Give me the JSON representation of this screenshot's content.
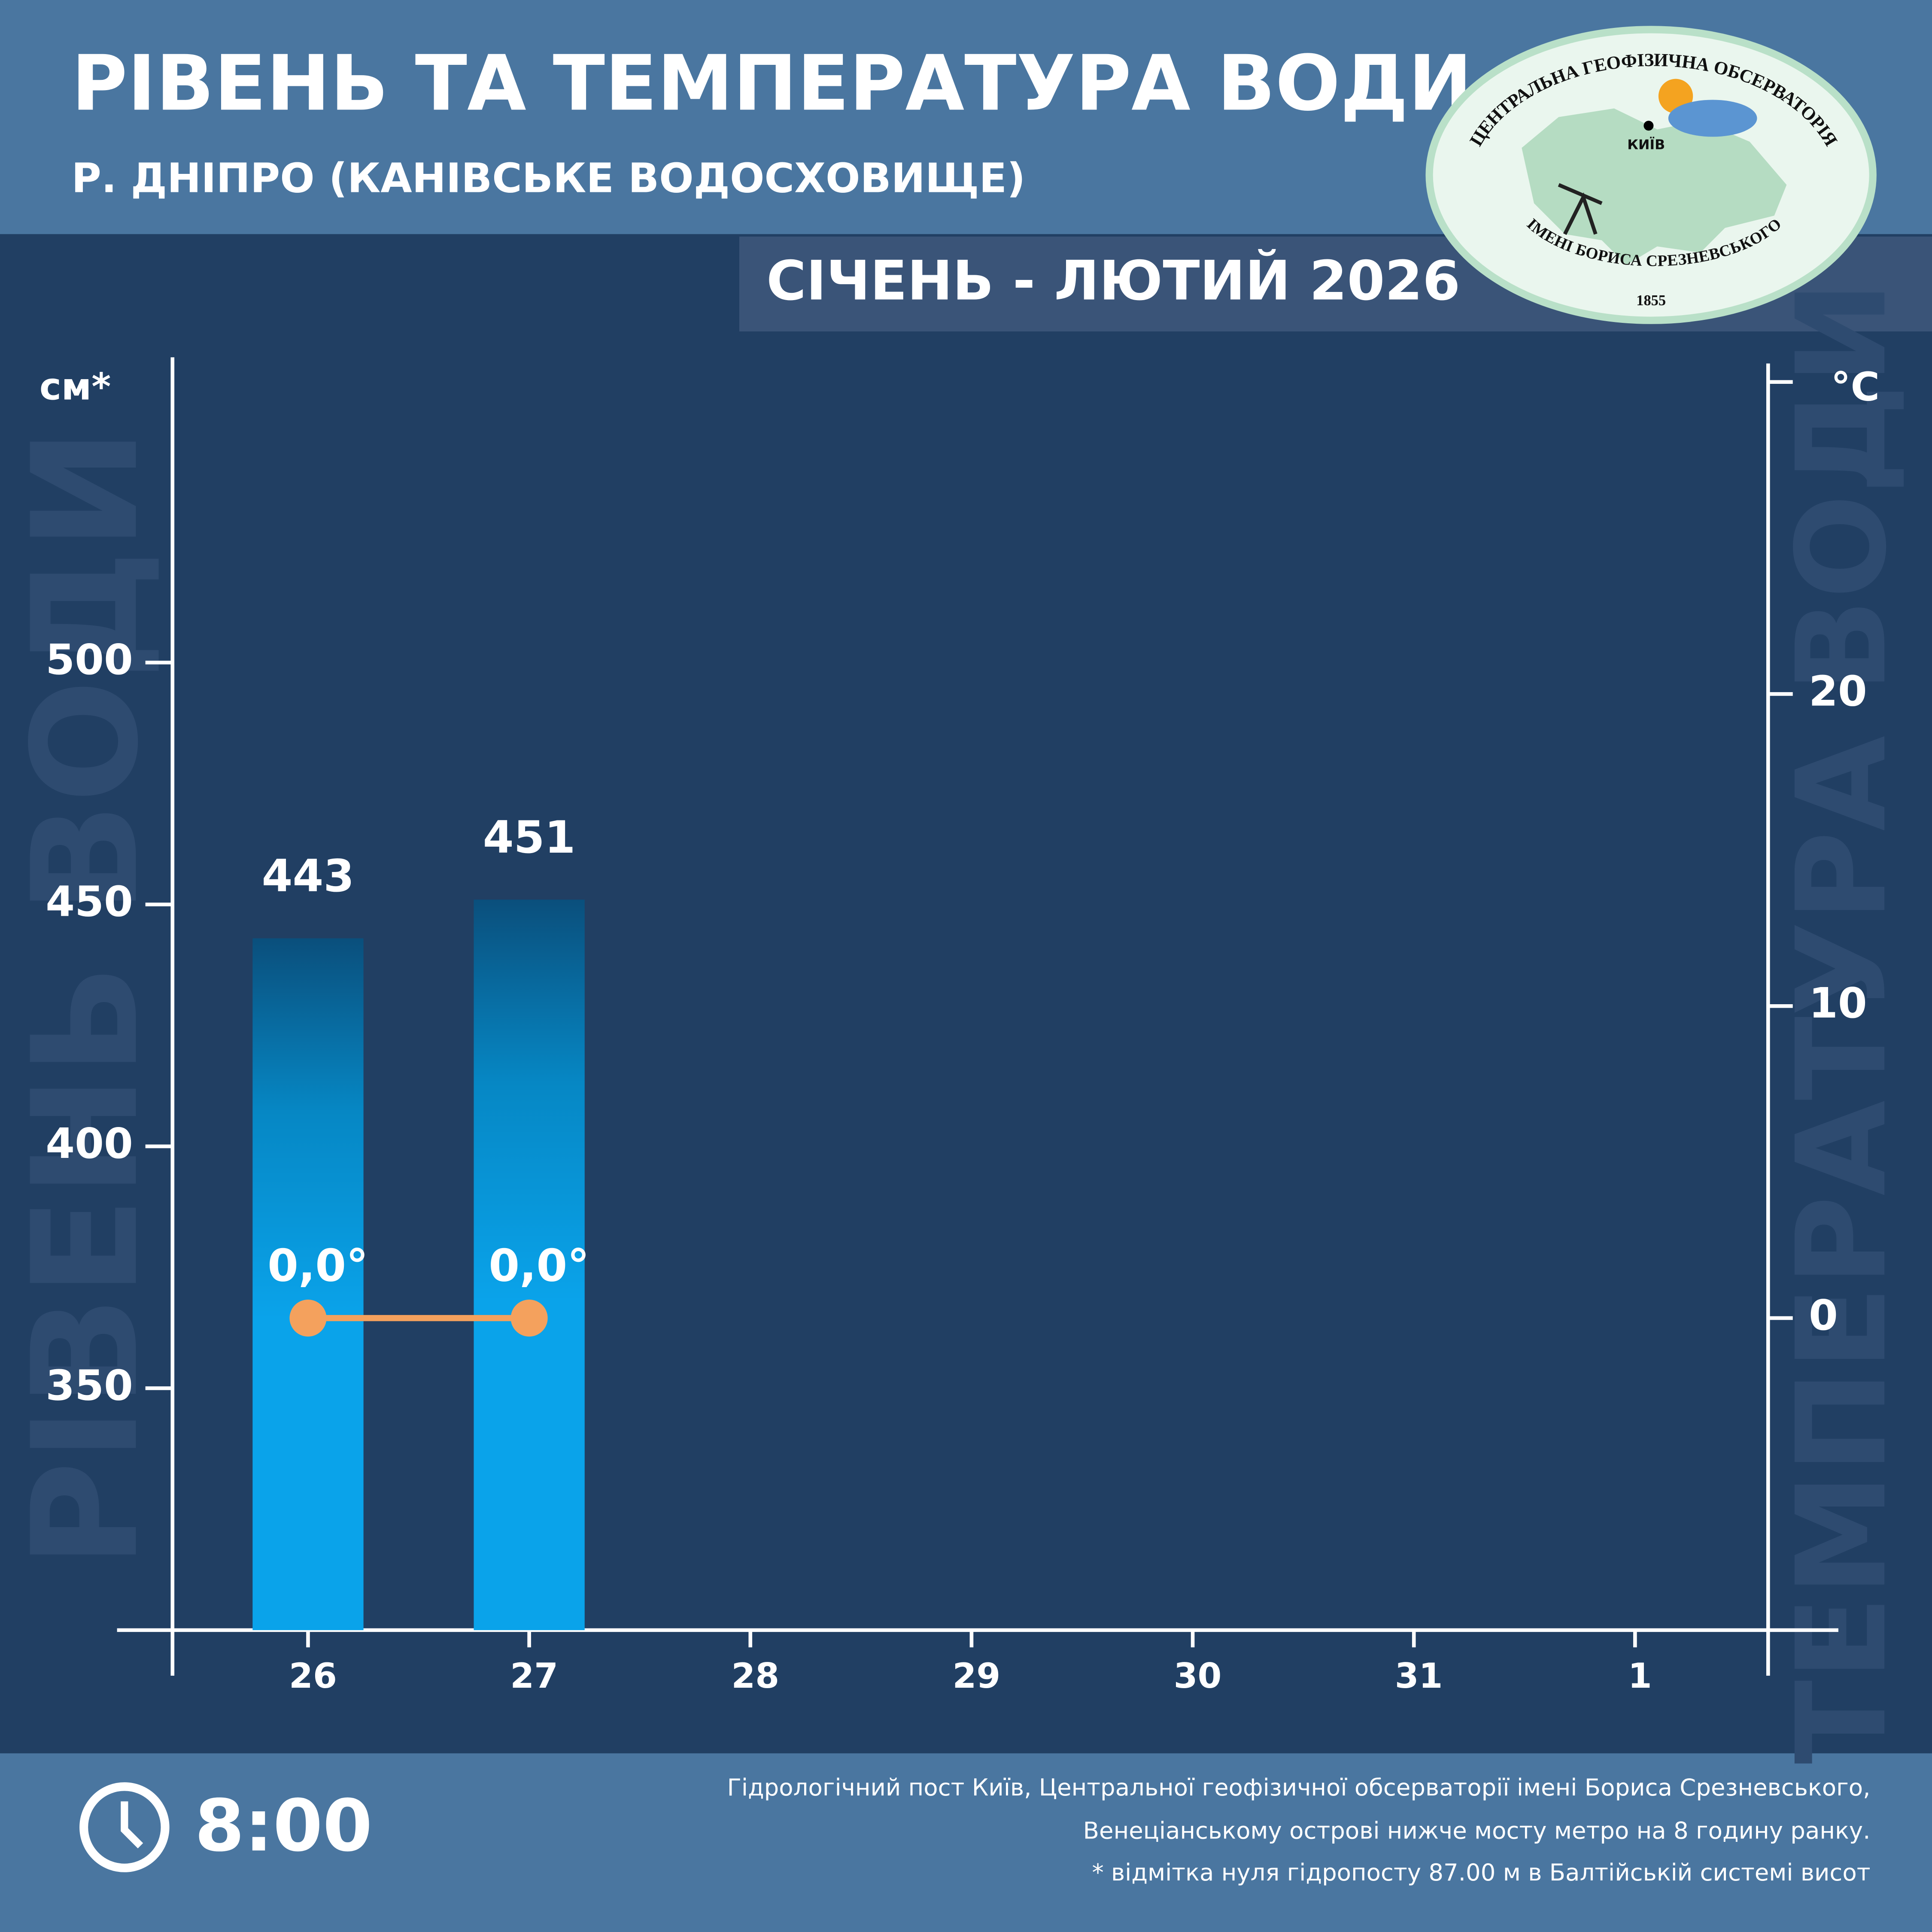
{
  "chart_data": {
    "type": "bar",
    "title": "РІВЕНЬ ТА ТЕМПЕРАТУРА ВОДИ",
    "subtitle": "Р. ДНІПРО (КАНІВСЬКЕ ВОДОСХОВИЩЕ)",
    "period": "СІЧЕНЬ - ЛЮТИЙ 2026",
    "y_label": "см*",
    "y2_label": "°C",
    "y_watermark": "РІВЕНЬ ВОДИ",
    "y2_watermark": "ТЕМПЕРАТУРА ВОДИ",
    "categories": [
      "26",
      "27",
      "28",
      "29",
      "30",
      "31",
      "1"
    ],
    "series": [
      {
        "name": "Рівень води",
        "type": "bar",
        "color": "#0aa3ea",
        "values": [
          443,
          451,
          null,
          null,
          null,
          null,
          null
        ]
      },
      {
        "name": "Температура води",
        "type": "line",
        "axis": "y2",
        "color": "#f4a15d",
        "values": [
          0.0,
          0.0,
          null,
          null,
          null,
          null,
          null
        ],
        "value_labels": [
          "0,0°",
          "0,0°",
          null,
          null,
          null,
          null,
          null
        ]
      }
    ],
    "ylim": [
      300,
      558
    ],
    "yticks": [
      350,
      400,
      450,
      500
    ],
    "y2lim": [
      -10,
      30
    ],
    "y2ticks": [
      0,
      10,
      20
    ],
    "time": "8:00",
    "footnote": [
      "Гідрологічний пост Київ, Центральної геофізичної обсерваторії імені Бориса Срезневського,",
      "Венеціанському острові нижче мосту метро  на 8 годину ранку.",
      "* відмітка нуля гідропосту 87.00 м в Балтійській системі висот"
    ]
  },
  "logo": {
    "top": "ЦЕНТРАЛЬНА ГЕОФІЗИЧНА ОБСЕРВАТОРІЯ",
    "city": "КИЇВ",
    "bottom": "ІМЕНІ БОРИСА СРЕЗНЕВСЬКОГО",
    "year": "1855"
  }
}
